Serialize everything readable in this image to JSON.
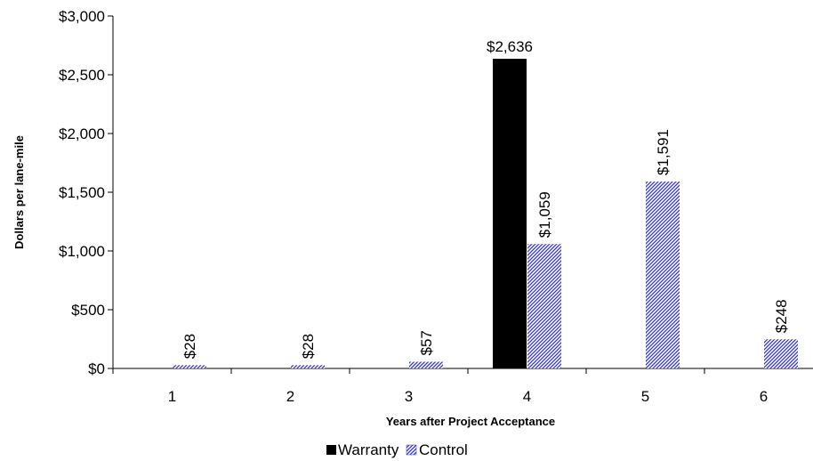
{
  "chart_data": {
    "type": "bar",
    "title": "",
    "xlabel": "Years after Project Acceptance",
    "ylabel": "Dollars per lane-mile",
    "categories": [
      "1",
      "2",
      "3",
      "4",
      "5",
      "6"
    ],
    "series": [
      {
        "name": "Warranty",
        "values": [
          null,
          null,
          null,
          2636,
          null,
          null
        ],
        "labels": [
          "",
          "",
          "",
          "$2,636",
          "",
          ""
        ],
        "color": "#000000",
        "pattern": "solid"
      },
      {
        "name": "Control",
        "values": [
          28,
          28,
          57,
          1059,
          1591,
          248
        ],
        "labels": [
          "$28",
          "$28",
          "$57",
          "$1,059",
          "$1,591",
          "$248"
        ],
        "color": "#3333cc",
        "pattern": "diagonal-hatch"
      }
    ],
    "ylim": [
      0,
      3000
    ],
    "yticks": [
      0,
      500,
      1000,
      1500,
      2000,
      2500,
      3000
    ],
    "ytick_labels": [
      "$0",
      "$500",
      "$1,000",
      "$1,500",
      "$2,000",
      "$2,500",
      "$3,000"
    ],
    "grid": false,
    "legend_position": "bottom-center"
  }
}
